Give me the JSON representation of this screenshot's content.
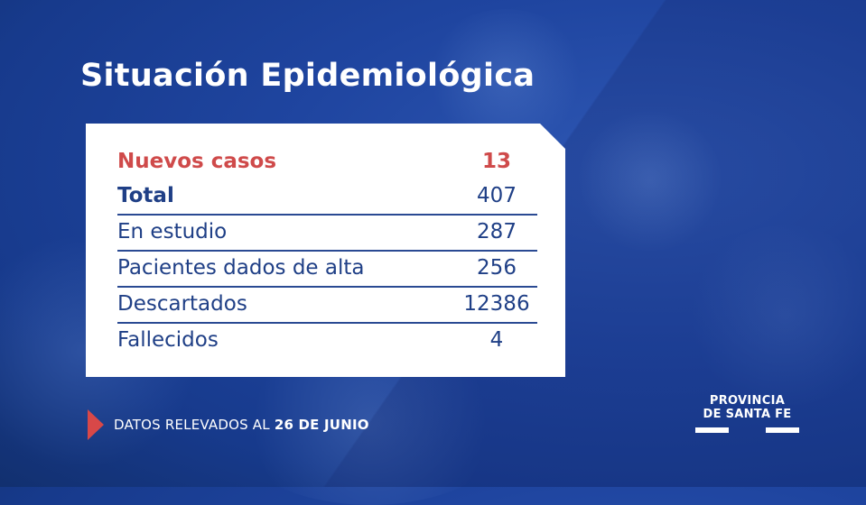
{
  "title": "Situación Epidemiológica",
  "table": {
    "rows": [
      {
        "label": "Nuevos casos",
        "value": "13"
      },
      {
        "label": "Total",
        "value": "407"
      },
      {
        "label": "En estudio",
        "value": "287"
      },
      {
        "label": "Pacientes dados de alta",
        "value": "256"
      },
      {
        "label": "Descartados",
        "value": "12386"
      },
      {
        "label": "Fallecidos",
        "value": "4"
      }
    ]
  },
  "footer": {
    "prefix": "DATOS RELEVADOS AL",
    "date": "26 DE JUNIO",
    "icon": "triangle-right-icon"
  },
  "logo": {
    "line1": "PROVINCIA",
    "line2": "DE SANTA FE"
  },
  "colors": {
    "background": "#1f45a0",
    "accent_red": "#cf4a4a",
    "text_blue": "#1f3f86"
  }
}
